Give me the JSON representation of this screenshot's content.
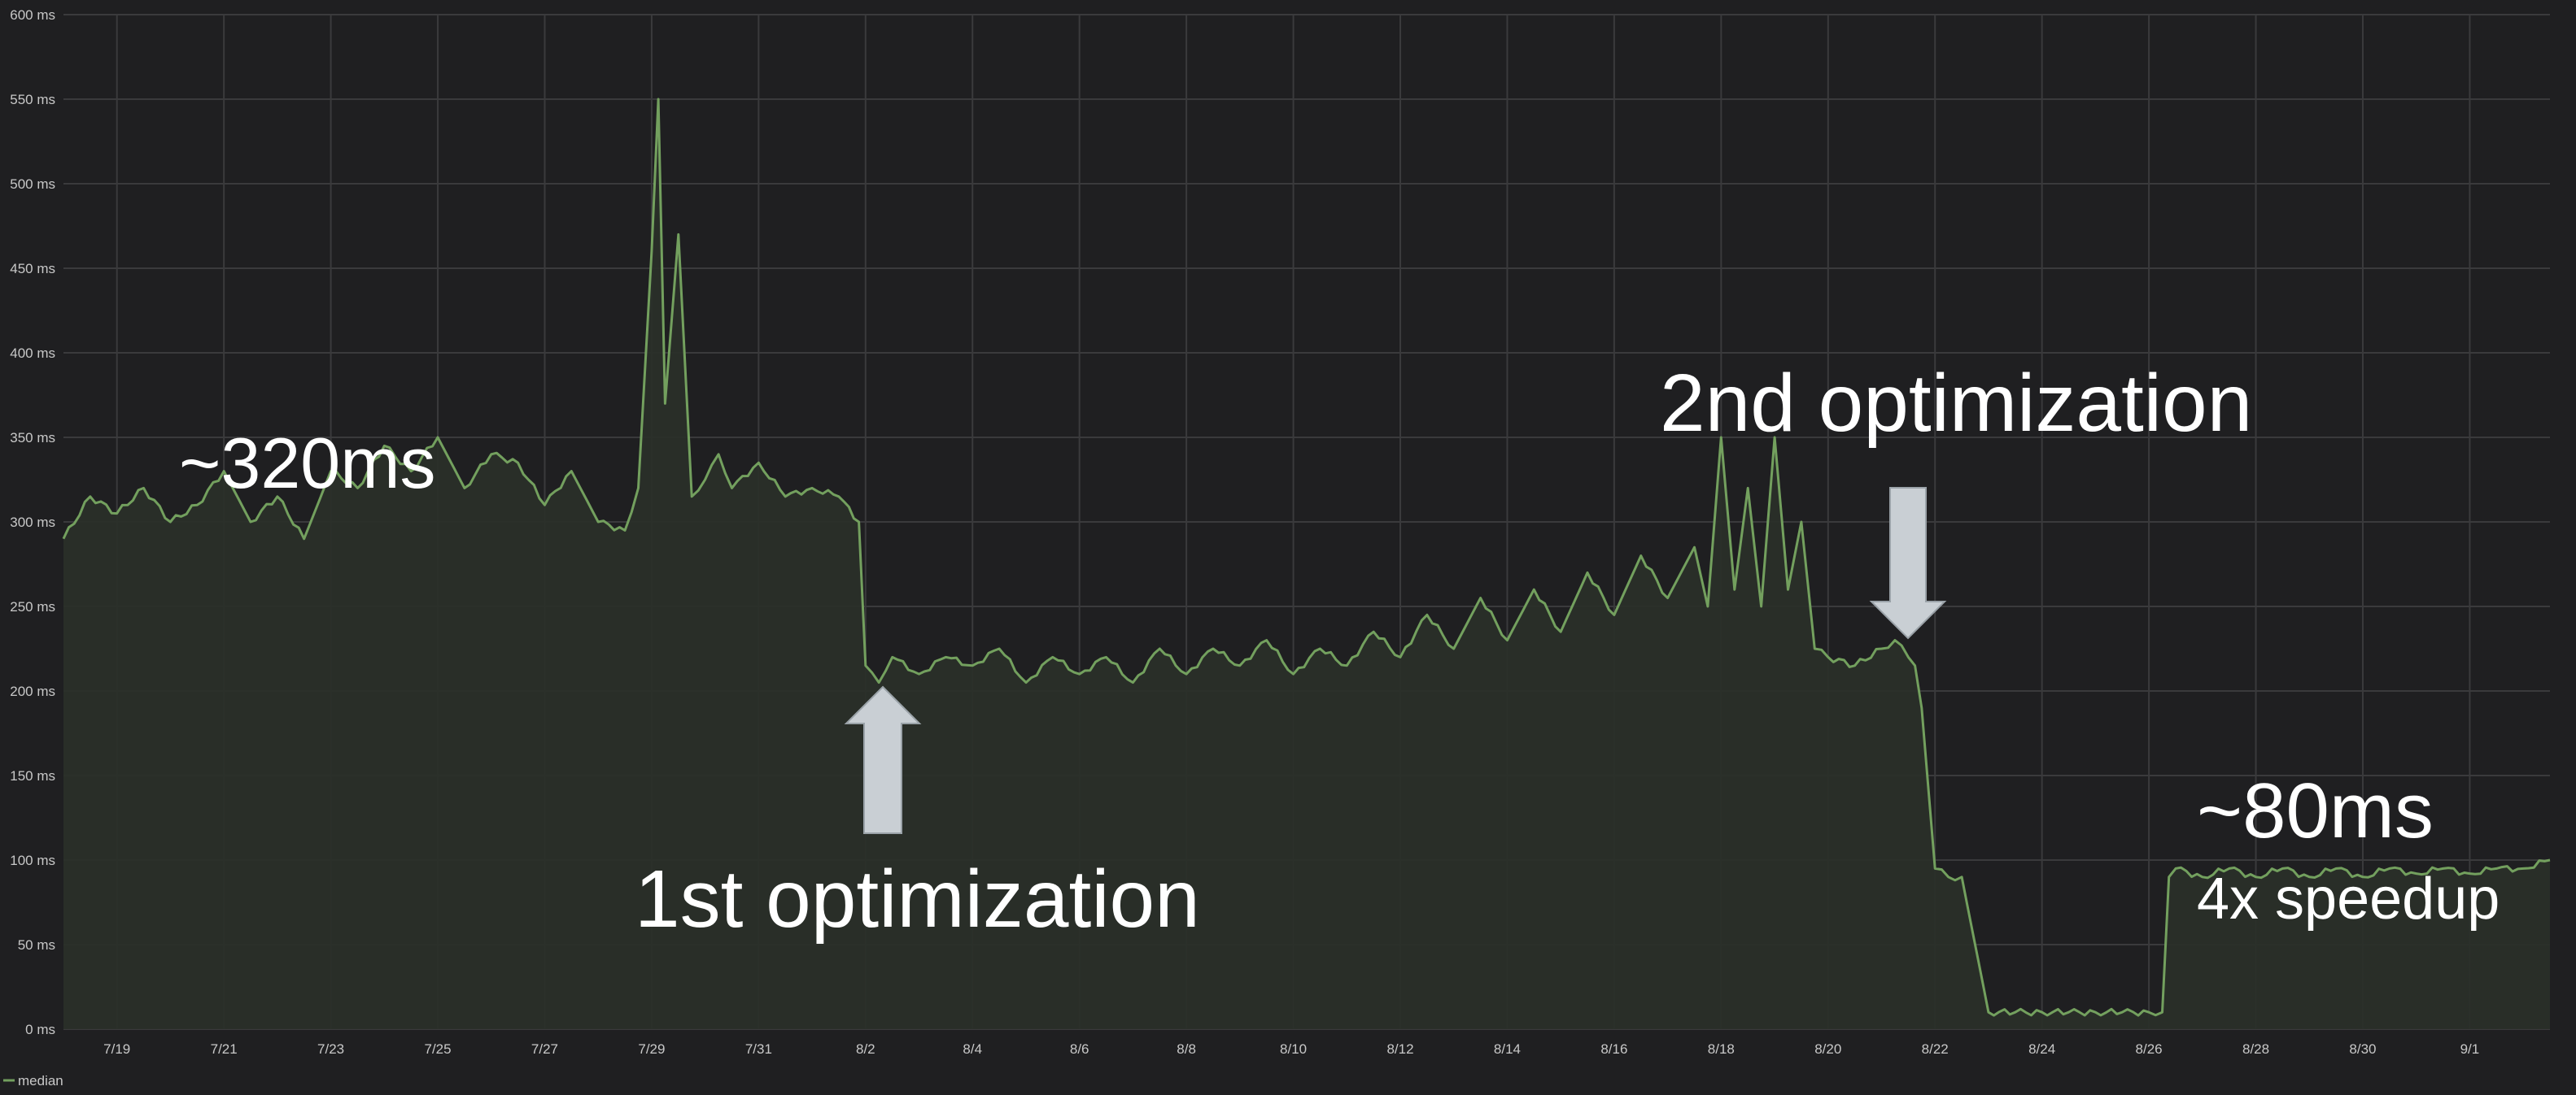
{
  "colors": {
    "background": "#1f1f21",
    "grid": "#3a3a3c",
    "series_line": "#73a05e",
    "series_fill": "#2a2f29",
    "arrow_fill": "#c9cfd4",
    "annotation_text": "#ffffff",
    "tick_text": "#c8c8c8"
  },
  "legend": {
    "label": "median",
    "placement": "bottom-left"
  },
  "annotations": {
    "left_level": "~320ms",
    "first_opt": "1st optimization",
    "second_opt": "2nd optimization",
    "right_level": "~80ms",
    "speedup": "4x speedup"
  },
  "chart_data": {
    "type": "area",
    "title": "",
    "xlabel": "",
    "ylabel": "",
    "grid": true,
    "ylim": [
      0,
      600
    ],
    "y_unit": "ms",
    "y_tick_labels": [
      "0 ms",
      "50 ms",
      "100 ms",
      "150 ms",
      "200 ms",
      "250 ms",
      "300 ms",
      "350 ms",
      "400 ms",
      "450 ms",
      "500 ms",
      "550 ms",
      "600 ms"
    ],
    "x_tick_labels": [
      "7/19",
      "7/21",
      "7/23",
      "7/25",
      "7/27",
      "7/29",
      "7/31",
      "8/2",
      "8/4",
      "8/6",
      "8/8",
      "8/10",
      "8/12",
      "8/14",
      "8/16",
      "8/18",
      "8/20",
      "8/22",
      "8/24",
      "8/26",
      "8/28",
      "8/30",
      "9/1"
    ],
    "xlim": [
      "2023-07-18 00:00",
      "2023-09-02 12:00"
    ],
    "series": [
      {
        "name": "median",
        "x": [
          "2023-07-18 00:00",
          "2023-07-18 12:00",
          "2023-07-19 00:00",
          "2023-07-19 12:00",
          "2023-07-20 00:00",
          "2023-07-20 12:00",
          "2023-07-21 00:00",
          "2023-07-21 12:00",
          "2023-07-22 00:00",
          "2023-07-22 12:00",
          "2023-07-23 00:00",
          "2023-07-23 12:00",
          "2023-07-24 00:00",
          "2023-07-24 12:00",
          "2023-07-25 00:00",
          "2023-07-25 12:00",
          "2023-07-26 00:00",
          "2023-07-26 12:00",
          "2023-07-27 00:00",
          "2023-07-27 12:00",
          "2023-07-28 00:00",
          "2023-07-28 12:00",
          "2023-07-28 18:00",
          "2023-07-29 00:00",
          "2023-07-29 03:00",
          "2023-07-29 06:00",
          "2023-07-29 12:00",
          "2023-07-29 18:00",
          "2023-07-30 00:00",
          "2023-07-30 06:00",
          "2023-07-30 12:00",
          "2023-07-31 00:00",
          "2023-07-31 12:00",
          "2023-08-01 00:00",
          "2023-08-01 12:00",
          "2023-08-01 21:00",
          "2023-08-02 00:00",
          "2023-08-02 06:00",
          "2023-08-02 12:00",
          "2023-08-03 00:00",
          "2023-08-03 12:00",
          "2023-08-04 00:00",
          "2023-08-04 12:00",
          "2023-08-05 00:00",
          "2023-08-05 12:00",
          "2023-08-06 00:00",
          "2023-08-06 12:00",
          "2023-08-07 00:00",
          "2023-08-07 12:00",
          "2023-08-08 00:00",
          "2023-08-08 12:00",
          "2023-08-09 00:00",
          "2023-08-09 12:00",
          "2023-08-10 00:00",
          "2023-08-10 12:00",
          "2023-08-11 00:00",
          "2023-08-11 12:00",
          "2023-08-12 00:00",
          "2023-08-12 12:00",
          "2023-08-13 00:00",
          "2023-08-13 12:00",
          "2023-08-14 00:00",
          "2023-08-14 12:00",
          "2023-08-15 00:00",
          "2023-08-15 12:00",
          "2023-08-16 00:00",
          "2023-08-16 12:00",
          "2023-08-17 00:00",
          "2023-08-17 12:00",
          "2023-08-17 18:00",
          "2023-08-18 00:00",
          "2023-08-18 06:00",
          "2023-08-18 12:00",
          "2023-08-18 18:00",
          "2023-08-19 00:00",
          "2023-08-19 06:00",
          "2023-08-19 12:00",
          "2023-08-19 18:00",
          "2023-08-20 00:00",
          "2023-08-20 12:00",
          "2023-08-21 00:00",
          "2023-08-21 06:00",
          "2023-08-21 12:00",
          "2023-08-21 15:00",
          "2023-08-21 18:00",
          "2023-08-22 00:00",
          "2023-08-22 06:00",
          "2023-08-22 12:00",
          "2023-08-23 00:00",
          "2023-08-23 12:00",
          "2023-08-24 00:00",
          "2023-08-24 12:00",
          "2023-08-25 00:00",
          "2023-08-25 12:00",
          "2023-08-26 00:00",
          "2023-08-26 06:00",
          "2023-08-26 09:00",
          "2023-08-26 12:00",
          "2023-08-27 00:00",
          "2023-08-27 12:00",
          "2023-08-28 00:00",
          "2023-08-28 12:00",
          "2023-08-29 00:00",
          "2023-08-29 12:00",
          "2023-08-30 00:00",
          "2023-08-30 12:00",
          "2023-08-31 00:00",
          "2023-08-31 12:00",
          "2023-09-01 00:00",
          "2023-09-01 12:00",
          "2023-09-02 00:00",
          "2023-09-02 12:00"
        ],
        "y": [
          290,
          315,
          305,
          320,
          300,
          310,
          330,
          300,
          315,
          290,
          330,
          320,
          345,
          330,
          350,
          320,
          340,
          335,
          310,
          330,
          300,
          295,
          320,
          460,
          550,
          370,
          470,
          315,
          325,
          340,
          320,
          335,
          315,
          320,
          315,
          300,
          215,
          205,
          220,
          210,
          220,
          215,
          225,
          205,
          220,
          210,
          220,
          205,
          225,
          210,
          225,
          215,
          230,
          210,
          225,
          215,
          235,
          220,
          245,
          225,
          255,
          230,
          260,
          235,
          270,
          245,
          280,
          255,
          285,
          250,
          350,
          260,
          320,
          250,
          350,
          260,
          300,
          225,
          220,
          215,
          225,
          230,
          220,
          215,
          190,
          95,
          90,
          90,
          10,
          10,
          10,
          10,
          10,
          10,
          10,
          10,
          90,
          95,
          90,
          95,
          90,
          95,
          90,
          95,
          90,
          95,
          92,
          95,
          92,
          95,
          95,
          100
        ]
      }
    ]
  }
}
